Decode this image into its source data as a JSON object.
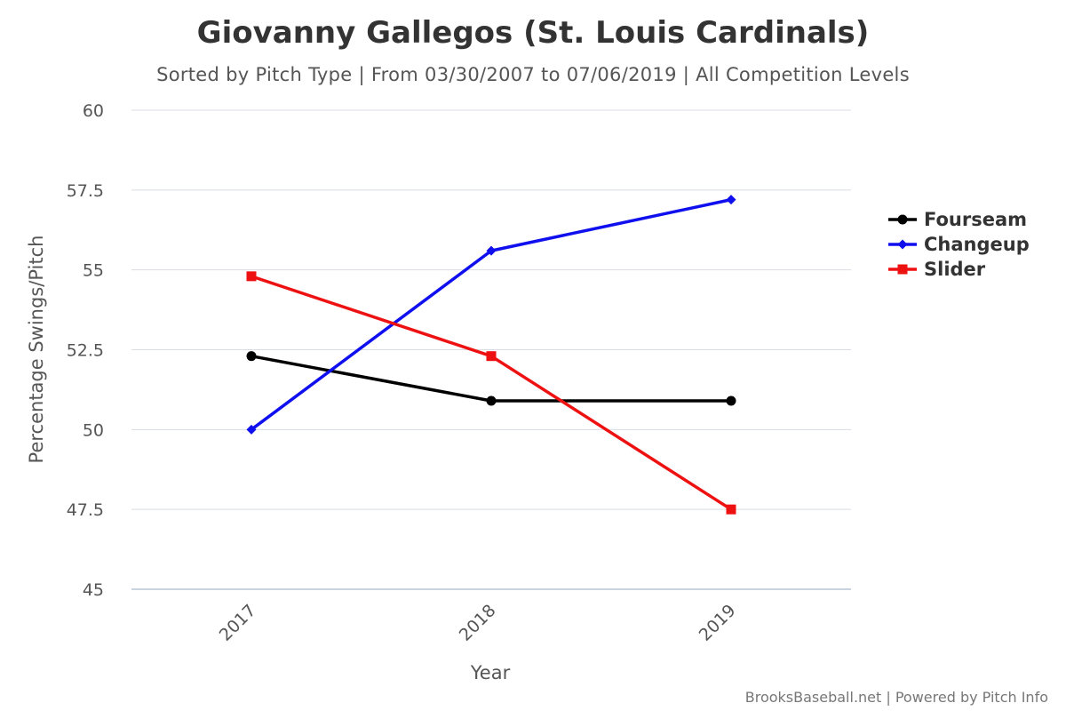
{
  "chart_data": {
    "type": "line",
    "title": "Giovanny Gallegos (St. Louis Cardinals)",
    "subtitle": "Sorted by Pitch Type | From 03/30/2007 to 07/06/2019 | All Competition Levels",
    "xlabel": "Year",
    "ylabel": "Percentage Swings/Pitch",
    "categories": [
      "2017",
      "2018",
      "2019"
    ],
    "ylim": [
      45,
      60
    ],
    "yticks": [
      "45",
      "47.5",
      "50",
      "52.5",
      "55",
      "57.5",
      "60"
    ],
    "grid": true,
    "legend_position": "right",
    "series": [
      {
        "name": "Fourseam",
        "color": "#000000",
        "marker": "circle",
        "values": [
          52.3,
          50.9,
          50.9
        ]
      },
      {
        "name": "Changeup",
        "color": "#1010ee",
        "marker": "diamond",
        "values": [
          50.0,
          55.6,
          57.2
        ]
      },
      {
        "name": "Slider",
        "color": "#ee1111",
        "marker": "square",
        "values": [
          54.8,
          52.3,
          47.5
        ]
      }
    ]
  },
  "credits": "BrooksBaseball.net | Powered by Pitch Info"
}
